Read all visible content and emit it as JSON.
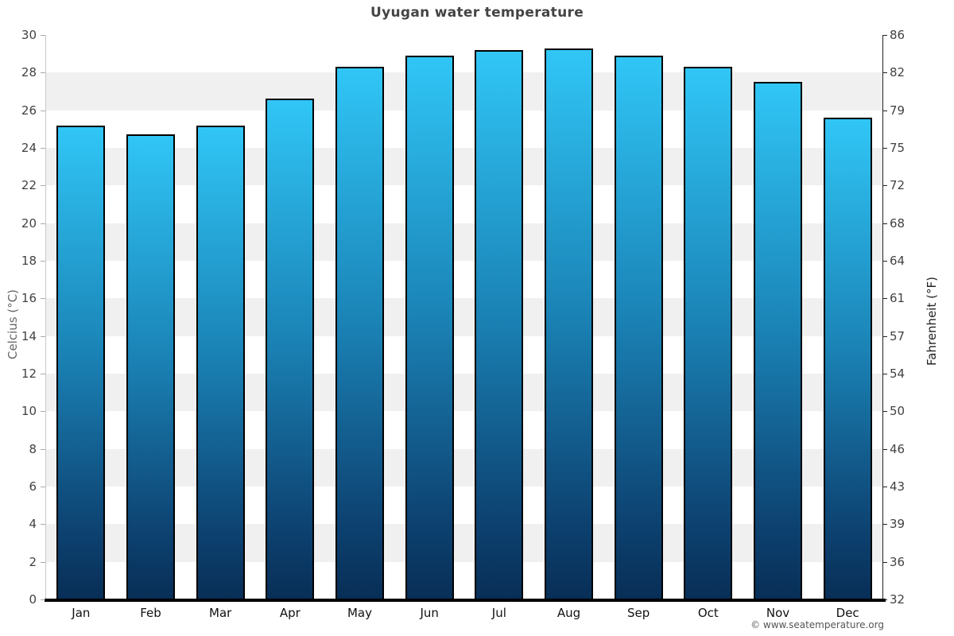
{
  "footer": {
    "copyright": "© www.seatemperature.org"
  },
  "chart_data": {
    "type": "bar",
    "title": "Uyugan water temperature",
    "categories": [
      "Jan",
      "Feb",
      "Mar",
      "Apr",
      "May",
      "Jun",
      "Jul",
      "Aug",
      "Sep",
      "Oct",
      "Nov",
      "Dec"
    ],
    "series": [
      {
        "name": "Water temperature (°C)",
        "values": [
          25.2,
          24.7,
          25.2,
          26.6,
          28.3,
          28.9,
          29.2,
          29.3,
          28.9,
          28.3,
          27.5,
          25.6
        ]
      }
    ],
    "ylabel_left": "Celcius (°C)",
    "ylabel_right": "Fahrenheit (°F)",
    "ylim_celsius": [
      0,
      30
    ],
    "celsius_ticks": [
      30,
      28,
      26,
      24,
      22,
      20,
      18,
      16,
      14,
      12,
      10,
      8,
      6,
      4,
      2,
      0
    ],
    "fahrenheit_ticks": [
      86,
      82,
      79,
      75,
      72,
      68,
      64,
      61,
      57,
      54,
      50,
      46,
      43,
      39,
      36,
      32
    ],
    "legend": "none",
    "grid": "alternating 2°C horizontal bands",
    "colors": {
      "bar_gradient_top": "#30c6f6",
      "bar_gradient_mid": "#1b84b7",
      "bar_gradient_low": "#0d4372",
      "bar_gradient_bottom": "#082e56",
      "bar_border": "#000000",
      "band_gray": "#f0f0f0",
      "band_white": "#ffffff"
    }
  }
}
